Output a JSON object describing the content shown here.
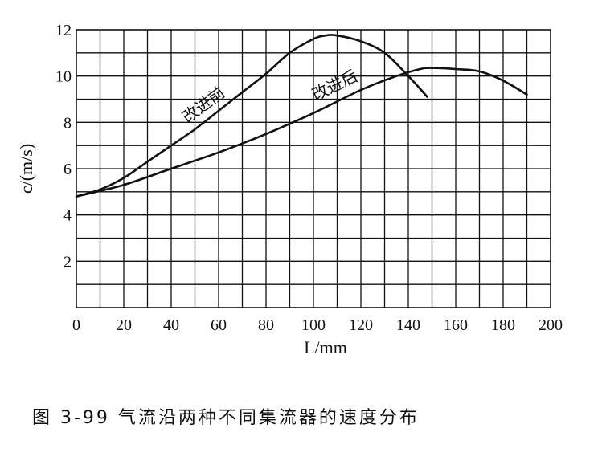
{
  "figure_caption": "图 3-99   气流沿两种不同集流器的速度分布",
  "chart_data": {
    "type": "line",
    "title": "",
    "xlabel": "L/mm",
    "ylabel": "c/(m/s)",
    "xlim": [
      0,
      200
    ],
    "ylim": [
      0,
      12
    ],
    "grid": true,
    "x_ticks": [
      "0",
      "20",
      "40",
      "60",
      "80",
      "100",
      "120",
      "140",
      "160",
      "180",
      "200"
    ],
    "y_ticks": [
      "2",
      "4",
      "6",
      "8",
      "10",
      "12"
    ],
    "series": [
      {
        "name": "改进前",
        "x": [
          0,
          10,
          20,
          30,
          40,
          50,
          60,
          70,
          80,
          90,
          100,
          105,
          110,
          120,
          130,
          140,
          148
        ],
        "y": [
          4.8,
          5.1,
          5.6,
          6.3,
          7.0,
          7.7,
          8.5,
          9.3,
          10.1,
          11.0,
          11.6,
          11.75,
          11.75,
          11.5,
          11.0,
          10.0,
          9.1
        ]
      },
      {
        "name": "改进后",
        "x": [
          0,
          20,
          40,
          60,
          80,
          100,
          120,
          135,
          145,
          150,
          160,
          170,
          180,
          190
        ],
        "y": [
          4.8,
          5.3,
          6.0,
          6.7,
          7.5,
          8.4,
          9.4,
          10.0,
          10.3,
          10.35,
          10.3,
          10.2,
          9.8,
          9.2
        ]
      }
    ]
  }
}
